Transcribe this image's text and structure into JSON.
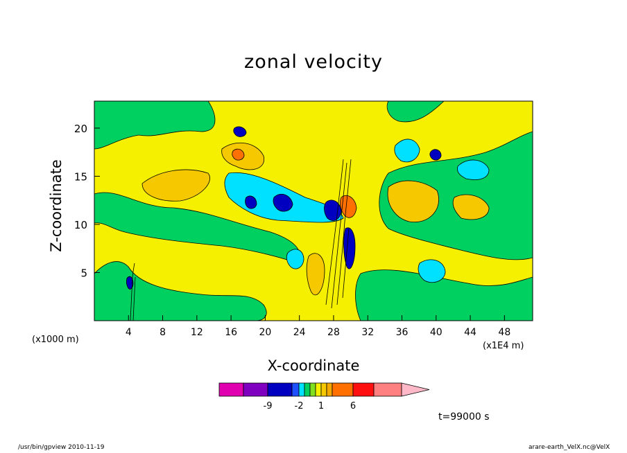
{
  "chart_data": {
    "type": "contour",
    "title": "zonal velocity",
    "xlabel": "X-coordinate",
    "ylabel": "Z-coordinate",
    "x_unit_label": "(x1E4 m)",
    "z_unit_label": "(x1000 m)",
    "x_ticks": [
      "4",
      "8",
      "12",
      "16",
      "20",
      "24",
      "28",
      "32",
      "36",
      "40",
      "44",
      "48"
    ],
    "y_ticks": [
      "5",
      "10",
      "15",
      "20"
    ],
    "xlim": [
      0,
      51.3
    ],
    "ylim": [
      0,
      22.8
    ],
    "colorbar": {
      "tick_labels": [
        "-9",
        "-2",
        "1",
        "6"
      ],
      "colors": [
        "#e000b0",
        "#8000c0",
        "#0000c0",
        "#1f50ff",
        "#00e0ff",
        "#00d060",
        "#80e020",
        "#f5f000",
        "#f5c800",
        "#f5a800",
        "#ff7000",
        "#ff1010",
        "#ff8080",
        "#ffb8c8"
      ]
    },
    "timestamp": "t=99000  s"
  },
  "footer": {
    "left": "/usr/bin/gpview   2010-11-19",
    "right": "arare-earth_VelX.nc@VelX"
  }
}
